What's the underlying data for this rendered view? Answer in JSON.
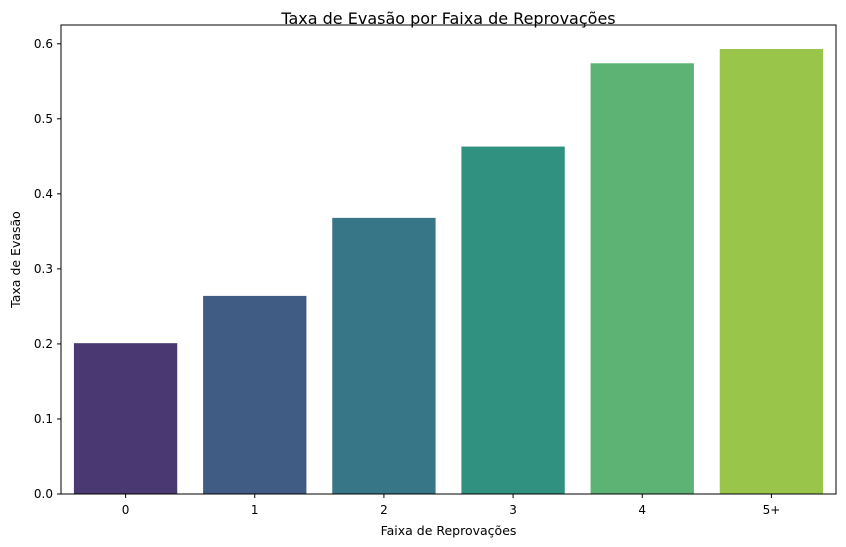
{
  "chart_data": {
    "type": "bar",
    "title": "Taxa de Evasão por Faixa de Reprovações",
    "xlabel": "Faixa de Reprovações",
    "ylabel": "Taxa de Evasão",
    "categories": [
      "0",
      "1",
      "2",
      "3",
      "4",
      "5+"
    ],
    "values": [
      0.201,
      0.264,
      0.368,
      0.463,
      0.574,
      0.593
    ],
    "colors": [
      "#4a3872",
      "#405c84",
      "#367686",
      "#319180",
      "#5cb374",
      "#9ac54b"
    ],
    "ylim": [
      0,
      0.625
    ],
    "yticks": [
      "0.0",
      "0.1",
      "0.2",
      "0.3",
      "0.4",
      "0.5",
      "0.6"
    ],
    "grid": false,
    "legend": "none"
  }
}
